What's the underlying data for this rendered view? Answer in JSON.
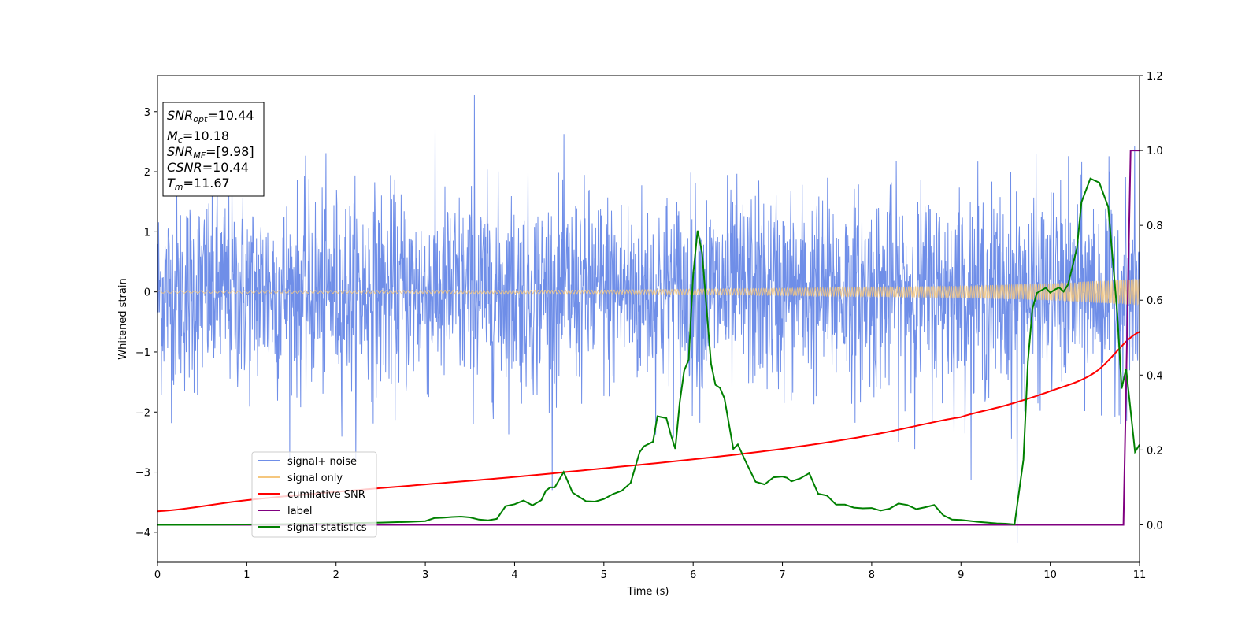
{
  "chart_data": {
    "type": "line",
    "xlabel": "Time (s)",
    "ylabel": "Whitened strain",
    "xlim": [
      0,
      11
    ],
    "ylim_left": [
      -4.5,
      3.6
    ],
    "ylim_right": [
      -0.1,
      1.2
    ],
    "x_ticks": [
      "0",
      "1",
      "2",
      "3",
      "4",
      "5",
      "6",
      "7",
      "8",
      "9",
      "10",
      "11"
    ],
    "y_ticks_left": [
      "−4",
      "−3",
      "−2",
      "−1",
      "0",
      "1",
      "2",
      "3"
    ],
    "y_ticks_right": [
      "0.0",
      "0.2",
      "0.4",
      "0.6",
      "0.8",
      "1.0",
      "1.2"
    ],
    "legend_placement": "lower-left",
    "info_box": {
      "snr_opt_label": "SNR",
      "snr_opt_sub": "opt",
      "snr_opt_value": "=10.44",
      "mc_label": "M",
      "mc_sub": "c",
      "mc_value": "=10.18",
      "snr_mf_label": "SNR",
      "snr_mf_sub": "MF",
      "snr_mf_value": "=[9.98]",
      "csnr_label": "CSNR",
      "csnr_value": "=10.44",
      "tm_label": "T",
      "tm_sub": "m",
      "tm_value": "=11.67"
    },
    "series": [
      {
        "name": "signal+ noise",
        "axis": "left",
        "color": "#6f8ee8",
        "description_values": {
          "noise_band_typical": [
            -1.6,
            1.6
          ],
          "peak_max": 3.28,
          "peak_max_x": 3.55,
          "peak_min": -4.18,
          "peak_min_x": 9.63
        }
      },
      {
        "name": "signal only",
        "axis": "left",
        "color": "#f5c77e",
        "amplitude": [
          [
            0,
            0.02
          ],
          [
            5,
            0.03
          ],
          [
            7,
            0.06
          ],
          [
            9,
            0.1
          ],
          [
            10,
            0.14
          ],
          [
            11,
            0.22
          ]
        ]
      },
      {
        "name": "cumilative SNR",
        "axis": "right",
        "color": "#ff0000",
        "x": [
          0,
          1,
          2,
          3,
          4,
          5,
          6,
          7,
          8,
          9,
          9.5,
          10,
          10.5,
          11
        ],
        "y": [
          0.036,
          0.066,
          0.088,
          0.108,
          0.128,
          0.151,
          0.175,
          0.203,
          0.24,
          0.288,
          0.319,
          0.357,
          0.407,
          0.516
        ]
      },
      {
        "name": "label",
        "axis": "right",
        "color": "#800080",
        "x": [
          0,
          10.82,
          10.9,
          11
        ],
        "y": [
          0.0,
          0.0,
          1.0,
          1.0
        ]
      },
      {
        "name": "signal statistics",
        "axis": "right",
        "color": "#008000",
        "x": [
          0,
          0.5,
          1,
          1.5,
          2,
          2.5,
          2.8,
          3,
          3.1,
          3.2,
          3.3,
          3.4,
          3.5,
          3.6,
          3.7,
          3.8,
          3.9,
          4,
          4.1,
          4.2,
          4.3,
          4.35,
          4.4,
          4.45,
          4.55,
          4.65,
          4.8,
          4.9,
          5,
          5.1,
          5.2,
          5.3,
          5.4,
          5.45,
          5.55,
          5.6,
          5.7,
          5.75,
          5.8,
          5.85,
          5.9,
          5.95,
          6,
          6.05,
          6.1,
          6.2,
          6.25,
          6.3,
          6.35,
          6.45,
          6.5,
          6.6,
          6.7,
          6.8,
          6.9,
          7,
          7.05,
          7.1,
          7.2,
          7.3,
          7.4,
          7.5,
          7.6,
          7.7,
          7.8,
          7.9,
          8,
          8.1,
          8.2,
          8.3,
          8.4,
          8.5,
          8.6,
          8.7,
          8.8,
          8.9,
          9,
          9.2,
          9.4,
          9.5,
          9.6,
          9.7,
          9.75,
          9.8,
          9.85,
          9.95,
          10,
          10.05,
          10.1,
          10.15,
          10.2,
          10.3,
          10.35,
          10.45,
          10.55,
          10.65,
          10.75,
          10.8,
          10.85,
          10.95,
          11
        ],
        "y": [
          0.0,
          0.0,
          0.001,
          0.002,
          0.004,
          0.006,
          0.008,
          0.01,
          0.018,
          0.019,
          0.021,
          0.022,
          0.02,
          0.014,
          0.012,
          0.016,
          0.05,
          0.055,
          0.065,
          0.052,
          0.066,
          0.091,
          0.1,
          0.1,
          0.141,
          0.086,
          0.063,
          0.062,
          0.069,
          0.082,
          0.091,
          0.112,
          0.194,
          0.21,
          0.222,
          0.29,
          0.285,
          0.241,
          0.203,
          0.328,
          0.412,
          0.441,
          0.668,
          0.786,
          0.727,
          0.43,
          0.374,
          0.366,
          0.338,
          0.203,
          0.215,
          0.163,
          0.115,
          0.108,
          0.127,
          0.129,
          0.126,
          0.116,
          0.124,
          0.138,
          0.083,
          0.078,
          0.054,
          0.054,
          0.046,
          0.044,
          0.045,
          0.038,
          0.043,
          0.057,
          0.053,
          0.042,
          0.047,
          0.053,
          0.026,
          0.014,
          0.013,
          0.008,
          0.004,
          0.003,
          0.001,
          0.174,
          0.436,
          0.577,
          0.619,
          0.633,
          0.62,
          0.628,
          0.634,
          0.623,
          0.642,
          0.74,
          0.862,
          0.925,
          0.914,
          0.849,
          0.567,
          0.364,
          0.417,
          0.195,
          0.214
        ]
      }
    ]
  }
}
